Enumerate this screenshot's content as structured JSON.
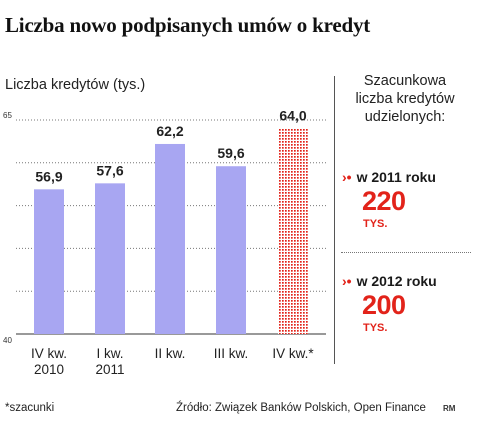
{
  "header": {
    "title": "Liczba nowo podpisanych umów o kredyt"
  },
  "chart_data": {
    "type": "bar",
    "ylabel": "Liczba kredytów (tys.)",
    "ylim": [
      40,
      65
    ],
    "yticks": [
      "65",
      "40"
    ],
    "categories": [
      {
        "line1": "IV kw.",
        "line2": "2010"
      },
      {
        "line1": "I kw.",
        "line2": "2011"
      },
      {
        "line1": "II kw.",
        "line2": ""
      },
      {
        "line1": "III kw.",
        "line2": ""
      },
      {
        "line1": "IV kw.*",
        "line2": ""
      }
    ],
    "values": [
      56.9,
      57.6,
      62.2,
      59.6,
      64.0
    ],
    "value_labels": [
      "56,9",
      "57,6",
      "62,2",
      "59,6",
      "64,0"
    ],
    "estimated": [
      false,
      false,
      false,
      false,
      true
    ],
    "colors": {
      "actual": "#a8a6f2",
      "estimate": "#e2231a"
    },
    "grid": "dotted horizontal"
  },
  "sidebar": {
    "heading_lines": [
      "Szacunkowa",
      "liczba kredytów",
      "udzielonych:"
    ],
    "items": [
      {
        "label": "w 2011 roku",
        "value": "220",
        "unit": "TYS."
      },
      {
        "label": "w 2012 roku",
        "value": "200",
        "unit": "TYS."
      }
    ]
  },
  "footer": {
    "note": "*szacunki",
    "source": "Źródło: Związek Banków Polskich, Open Finance",
    "credit": "RM"
  }
}
